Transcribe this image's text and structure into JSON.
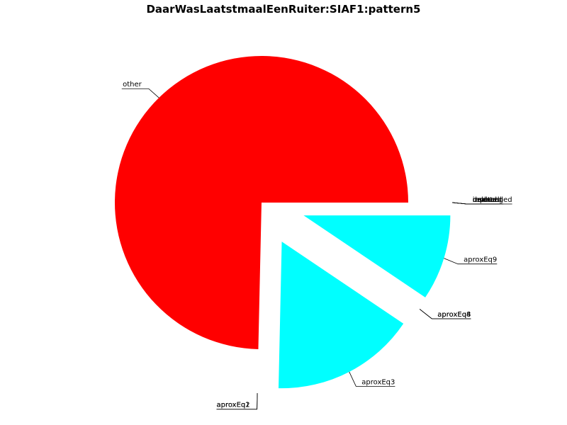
{
  "chart_data": {
    "type": "pie",
    "title": "DaarWasLaatstmaalEenRuiter:SIAF1:pattern5",
    "slices": [
      {
        "label": "other",
        "value": 0.7465,
        "color": "#ff0000",
        "exploded": false
      },
      {
        "label": "aproxEq1",
        "value": 0.0,
        "color": "#00ffff",
        "exploded": true
      },
      {
        "label": "aproxEq2",
        "value": 0.0,
        "color": "#00ffff",
        "exploded": true
      },
      {
        "label": "aproxEq3",
        "value": 0.1591,
        "color": "#00ffff",
        "exploded": true
      },
      {
        "label": "aproxEq4",
        "value": 0.0,
        "color": "#00ffff",
        "exploded": true
      },
      {
        "label": "aproxEq8",
        "value": 0.0,
        "color": "#00ffff",
        "exploded": true
      },
      {
        "label": "aproxEq9",
        "value": 0.0944,
        "color": "#00ffff",
        "exploded": true
      },
      {
        "label": "unchanged",
        "value": 0.0,
        "color": "#00ffff",
        "exploded": true
      },
      {
        "label": "deleted",
        "value": 0.0,
        "color": "#00ffff",
        "exploded": true
      },
      {
        "label": "inserted",
        "value": 0.0,
        "color": "#00ffff",
        "exploded": true
      },
      {
        "label": "replaced",
        "value": 0.0,
        "color": "#00ffff",
        "exploded": true
      },
      {
        "label": "moved",
        "value": 0.0,
        "color": "#00ffff",
        "exploded": true
      }
    ]
  }
}
